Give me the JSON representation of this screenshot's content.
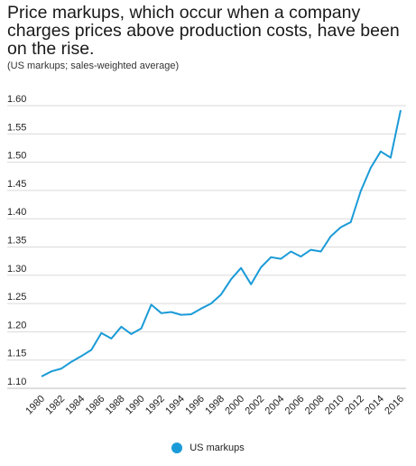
{
  "chart_data": {
    "type": "line",
    "title_lines": [
      "Price markups, which occur when a company",
      "charges prices above production costs, have been",
      "on the rise."
    ],
    "subtitle": "(US markups; sales-weighted average)",
    "xlabel": "",
    "ylabel": "",
    "ylim": [
      1.1,
      1.6
    ],
    "yticks": [
      "1.10",
      "1.15",
      "1.20",
      "1.25",
      "1.30",
      "1.35",
      "1.40",
      "1.45",
      "1.50",
      "1.55",
      "1.60"
    ],
    "xticks": [
      "1980",
      "1982",
      "1984",
      "1986",
      "1988",
      "1990",
      "1992",
      "1994",
      "1996",
      "1998",
      "2000",
      "2002",
      "2004",
      "2006",
      "2008",
      "2010",
      "2012",
      "2014",
      "2016"
    ],
    "grid": true,
    "legend_position": "bottom-center",
    "series": [
      {
        "name": "US markups",
        "color": "#1a9bd7",
        "x": [
          1980,
          1981,
          1982,
          1983,
          1984,
          1985,
          1986,
          1987,
          1988,
          1989,
          1990,
          1991,
          1992,
          1993,
          1994,
          1995,
          1996,
          1997,
          1998,
          1999,
          2000,
          2001,
          2002,
          2003,
          2004,
          2005,
          2006,
          2007,
          2008,
          2009,
          2010,
          2011,
          2012,
          2013,
          2014,
          2015,
          2016
        ],
        "values": [
          1.121,
          1.13,
          1.135,
          1.147,
          1.157,
          1.168,
          1.198,
          1.188,
          1.209,
          1.196,
          1.206,
          1.248,
          1.233,
          1.235,
          1.23,
          1.231,
          1.241,
          1.25,
          1.266,
          1.293,
          1.313,
          1.284,
          1.314,
          1.332,
          1.329,
          1.342,
          1.333,
          1.345,
          1.342,
          1.369,
          1.385,
          1.394,
          1.449,
          1.49,
          1.519,
          1.508,
          1.592
        ]
      }
    ]
  }
}
